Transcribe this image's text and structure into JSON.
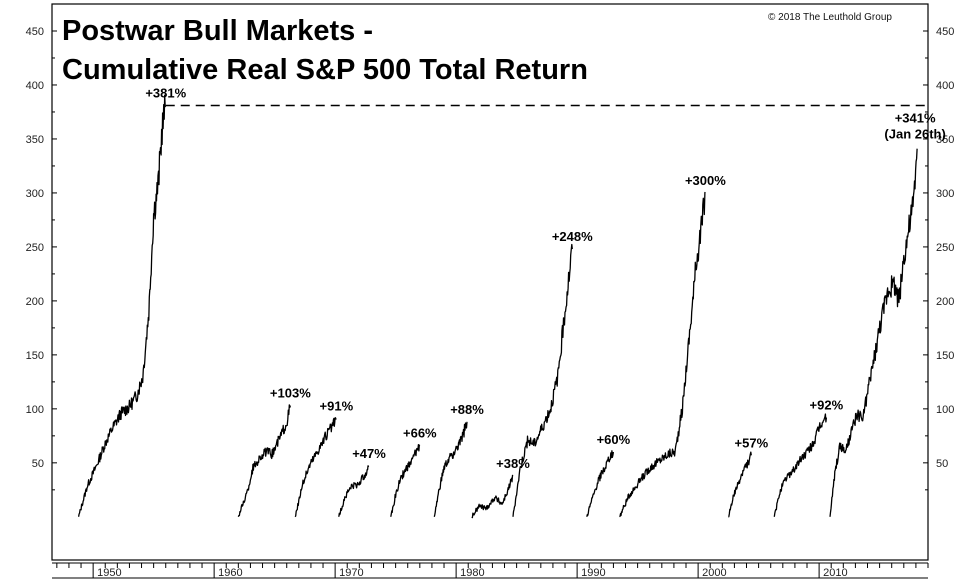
{
  "chart_data": {
    "type": "line",
    "title": [
      "Postwar Bull Markets -",
      "Cumulative Real S&P 500 Total Return"
    ],
    "copyright": "© 2018 The Leuthold Group",
    "xlabel": "",
    "ylabel": "",
    "xlim": [
      1946.6,
      2019.0
    ],
    "ylim": [
      -40,
      475
    ],
    "y_ticks": [
      50,
      100,
      150,
      200,
      250,
      300,
      350,
      400,
      450
    ],
    "x_tick_labels": [
      "1950",
      "1960",
      "1970",
      "1980",
      "1990",
      "2000",
      "2010"
    ],
    "x_tick_values": [
      1950,
      1960,
      1970,
      1980,
      1990,
      2000,
      2010
    ],
    "peak_line": {
      "value": 381,
      "x_from": 1956.0,
      "x_to": 2018.8
    },
    "series": [
      {
        "x": [
          1948.8,
          1949.5,
          1950.3,
          1951.0,
          1951.6,
          1952.3,
          1953.0,
          1953.6,
          1954.1,
          1954.6,
          1955.0,
          1955.4,
          1955.7,
          1956.0
        ],
        "y": [
          0,
          28,
          48,
          68,
          82,
          96,
          102,
          112,
          130,
          190,
          280,
          310,
          360,
          381
        ],
        "label": "+381%"
      },
      {
        "x": [
          1962.0,
          1962.8,
          1963.2,
          1963.8,
          1964.3,
          1964.8,
          1965.5,
          1966.0,
          1966.3
        ],
        "y": [
          0,
          25,
          45,
          55,
          60,
          58,
          75,
          88,
          103
        ],
        "label": "+103%"
      },
      {
        "x": [
          1966.7,
          1967.3,
          1967.9,
          1968.6,
          1969.3,
          1969.9,
          1970.1
        ],
        "y": [
          0,
          30,
          48,
          62,
          76,
          86,
          91
        ],
        "label": "+91%"
      },
      {
        "x": [
          1970.3,
          1970.8,
          1971.3,
          1971.9,
          1972.4,
          1972.8
        ],
        "y": [
          0,
          18,
          28,
          30,
          38,
          47
        ],
        "label": "+47%"
      },
      {
        "x": [
          1974.6,
          1975.0,
          1975.4,
          1975.9,
          1976.3,
          1976.6,
          1977.0
        ],
        "y": [
          0,
          20,
          35,
          45,
          50,
          58,
          66
        ],
        "label": "+66%"
      },
      {
        "x": [
          1978.2,
          1978.6,
          1979.0,
          1979.5,
          1980.0,
          1980.4,
          1980.9
        ],
        "y": [
          0,
          25,
          45,
          55,
          62,
          70,
          88
        ],
        "label": "+88%"
      },
      {
        "x": [
          1981.3,
          1981.9,
          1982.5,
          1983.2,
          1983.8,
          1984.3,
          1984.7
        ],
        "y": [
          0,
          10,
          8,
          18,
          12,
          25,
          38
        ],
        "label": "+38%"
      },
      {
        "x": [
          1984.7,
          1985.3,
          1985.9,
          1986.5,
          1987.2,
          1987.8,
          1988.4,
          1988.7,
          1989.0,
          1989.3,
          1989.6
        ],
        "y": [
          0,
          45,
          70,
          68,
          85,
          100,
          130,
          160,
          190,
          220,
          248
        ],
        "label": "+248%"
      },
      {
        "x": [
          1990.8,
          1991.3,
          1991.8,
          1992.3,
          1992.7,
          1993.0
        ],
        "y": [
          0,
          18,
          35,
          45,
          55,
          60
        ],
        "label": "+60%"
      },
      {
        "x": [
          1993.5,
          1994.3,
          1995.3,
          1996.0,
          1996.8,
          1997.5,
          1998.1,
          1998.7,
          1999.3,
          1999.9,
          2000.3,
          2000.6
        ],
        "y": [
          0,
          20,
          35,
          45,
          52,
          58,
          60,
          100,
          170,
          240,
          270,
          300
        ],
        "label": "+300%"
      },
      {
        "x": [
          2002.5,
          2002.9,
          2003.3,
          2003.7,
          2004.1,
          2004.4
        ],
        "y": [
          0,
          18,
          30,
          42,
          50,
          57
        ],
        "label": "+57%"
      },
      {
        "x": [
          2006.3,
          2006.8,
          2007.4,
          2008.0,
          2008.6,
          2009.2,
          2009.7,
          2010.1,
          2010.6
        ],
        "y": [
          0,
          25,
          38,
          45,
          55,
          62,
          72,
          85,
          92
        ],
        "label": "+92%"
      },
      {
        "x": [
          2010.9,
          2011.3,
          2011.7,
          2012.2,
          2012.6,
          2013.1,
          2013.6,
          2014.1,
          2014.6,
          2015.1,
          2015.7,
          2016.2,
          2016.6,
          2017.0,
          2017.4,
          2017.8,
          2018.1
        ],
        "y": [
          0,
          40,
          65,
          60,
          75,
          95,
          90,
          120,
          150,
          180,
          210,
          215,
          200,
          240,
          265,
          290,
          341
        ],
        "label": "+341%",
        "label_note": "(Jan 26th)"
      }
    ]
  }
}
